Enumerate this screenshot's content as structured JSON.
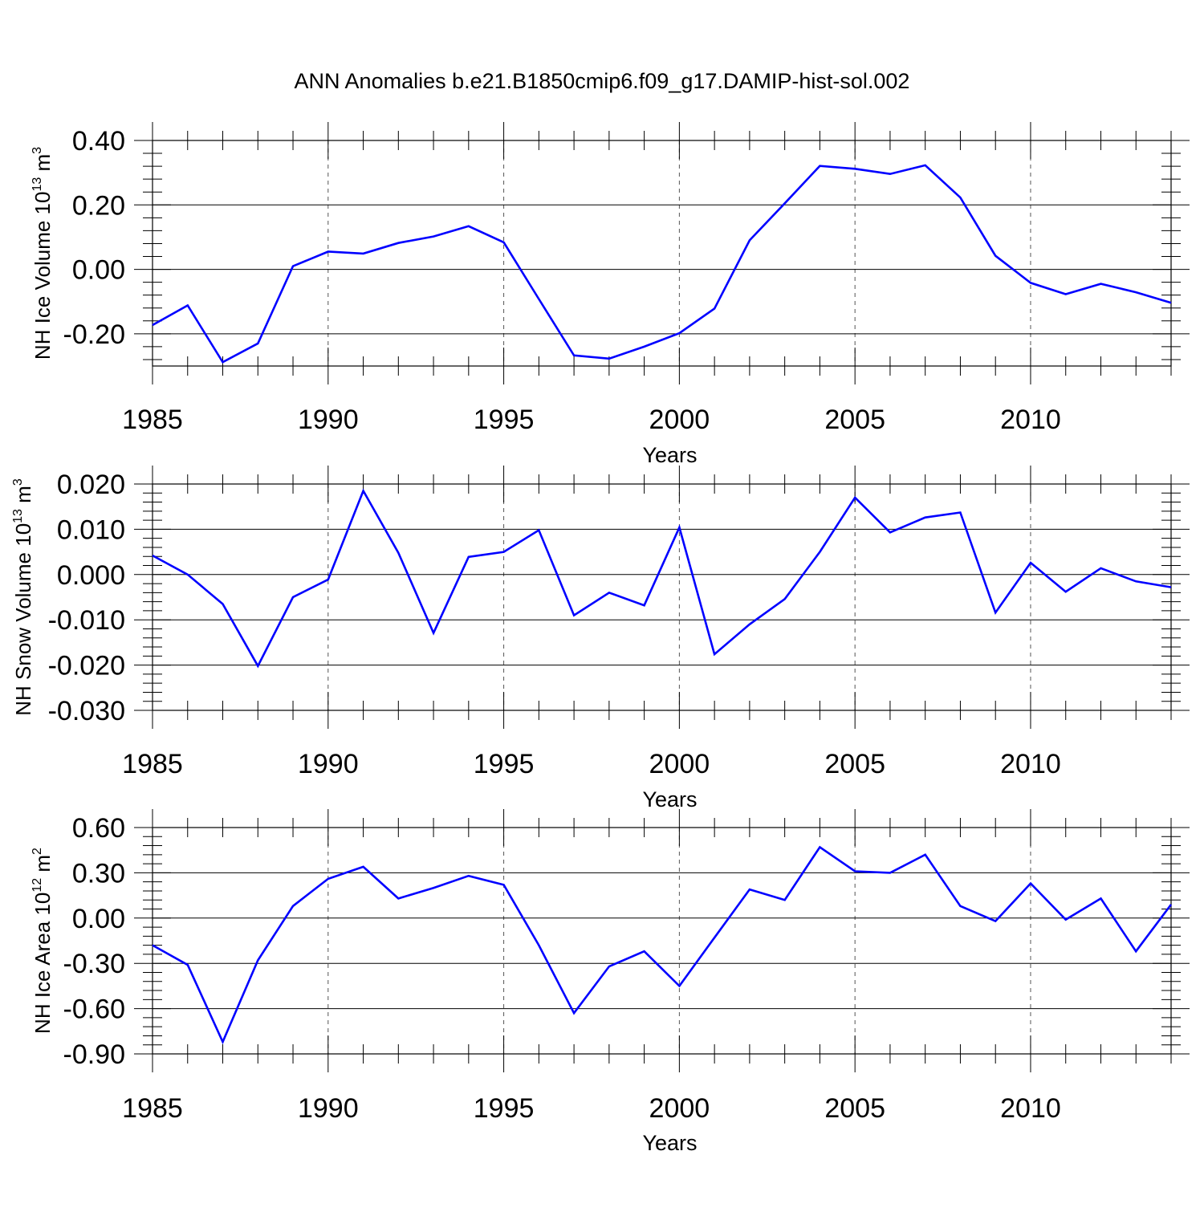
{
  "title": "ANN Anomalies b.e21.B1850cmip6.f09_g17.DAMIP-hist-sol.002",
  "colors": {
    "line": "#0000ff",
    "axis": "#000000",
    "grid": "#555555"
  },
  "chart_data": [
    {
      "type": "line",
      "name": "ice-volume",
      "ylabel": {
        "base": "NH Ice Volume 10",
        "exp1": "13",
        "mid": " m",
        "exp2": "3"
      },
      "xlabel": "Years",
      "xlim": [
        1985,
        2014
      ],
      "ylim": [
        -0.3,
        0.4
      ],
      "yticks": [
        -0.2,
        0.0,
        0.2,
        0.4
      ],
      "ytick_labels": [
        "-0.20",
        "0.00",
        "0.20",
        "0.40"
      ],
      "xticks": [
        1985,
        1990,
        1995,
        2000,
        2005,
        2010
      ],
      "xtick_labels": [
        "1985",
        "1990",
        "1995",
        "2000",
        "2005",
        "2010"
      ],
      "x": [
        1985,
        1986,
        1987,
        1988,
        1989,
        1990,
        1991,
        1992,
        1993,
        1994,
        1995,
        1996,
        1997,
        1998,
        1999,
        2000,
        2001,
        2002,
        2003,
        2004,
        2005,
        2006,
        2007,
        2008,
        2009,
        2010,
        2011,
        2012,
        2013,
        2014
      ],
      "values": [
        -0.173,
        -0.112,
        -0.288,
        -0.23,
        0.01,
        0.055,
        0.049,
        0.082,
        0.102,
        0.134,
        0.084,
        -0.092,
        -0.267,
        -0.277,
        -0.24,
        -0.198,
        -0.122,
        0.09,
        0.205,
        0.321,
        0.312,
        0.296,
        0.323,
        0.223,
        0.042,
        -0.042,
        -0.077,
        -0.045,
        -0.071,
        -0.104
      ]
    },
    {
      "type": "line",
      "name": "snow-volume",
      "ylabel": {
        "base": "NH Snow Volume 10",
        "exp1": "13",
        "mid": " m",
        "exp2": "3"
      },
      "xlabel": "Years",
      "xlim": [
        1985,
        2014
      ],
      "ylim": [
        -0.03,
        0.02
      ],
      "yticks": [
        -0.03,
        -0.02,
        -0.01,
        0.0,
        0.01,
        0.02
      ],
      "ytick_labels": [
        "-0.030",
        "-0.020",
        "-0.010",
        "0.000",
        "0.010",
        "0.020"
      ],
      "xticks": [
        1985,
        1990,
        1995,
        2000,
        2005,
        2010
      ],
      "xtick_labels": [
        "1985",
        "1990",
        "1995",
        "2000",
        "2005",
        "2010"
      ],
      "x": [
        1985,
        1986,
        1987,
        1988,
        1989,
        1990,
        1991,
        1992,
        1993,
        1994,
        1995,
        1996,
        1997,
        1998,
        1999,
        2000,
        2001,
        2002,
        2003,
        2004,
        2005,
        2006,
        2007,
        2008,
        2009,
        2010,
        2011,
        2012,
        2013,
        2014
      ],
      "values": [
        0.0042,
        0.0,
        -0.0065,
        -0.0202,
        -0.005,
        -0.0011,
        0.0185,
        0.0048,
        -0.0129,
        0.0039,
        0.005,
        0.0098,
        -0.009,
        -0.004,
        -0.0068,
        0.0104,
        -0.0176,
        -0.011,
        -0.0054,
        0.005,
        0.017,
        0.0093,
        0.0126,
        0.0137,
        -0.0084,
        0.0026,
        -0.0038,
        0.0014,
        -0.0015,
        -0.0028
      ]
    },
    {
      "type": "line",
      "name": "ice-area",
      "ylabel": {
        "base": "NH Ice Area 10",
        "exp1": "12",
        "mid": " m",
        "exp2": "2"
      },
      "xlabel": "Years",
      "xlim": [
        1985,
        2014
      ],
      "ylim": [
        -0.9,
        0.6
      ],
      "yticks": [
        -0.9,
        -0.6,
        -0.3,
        0.0,
        0.3,
        0.6
      ],
      "ytick_labels": [
        "-0.90",
        "-0.60",
        "-0.30",
        "0.00",
        "0.30",
        "0.60"
      ],
      "xticks": [
        1985,
        1990,
        1995,
        2000,
        2005,
        2010
      ],
      "xtick_labels": [
        "1985",
        "1990",
        "1995",
        "2000",
        "2005",
        "2010"
      ],
      "x": [
        1985,
        1986,
        1987,
        1988,
        1989,
        1990,
        1991,
        1992,
        1993,
        1994,
        1995,
        1996,
        1997,
        1998,
        1999,
        2000,
        2001,
        2002,
        2003,
        2004,
        2005,
        2006,
        2007,
        2008,
        2009,
        2010,
        2011,
        2012,
        2013,
        2014
      ],
      "values": [
        -0.18,
        -0.31,
        -0.82,
        -0.28,
        0.08,
        0.26,
        0.34,
        0.13,
        0.2,
        0.28,
        0.22,
        -0.18,
        -0.63,
        -0.32,
        -0.22,
        -0.45,
        -0.13,
        0.19,
        0.12,
        0.47,
        0.31,
        0.3,
        0.42,
        0.08,
        -0.02,
        0.23,
        -0.01,
        0.13,
        -0.22,
        0.09
      ]
    }
  ]
}
